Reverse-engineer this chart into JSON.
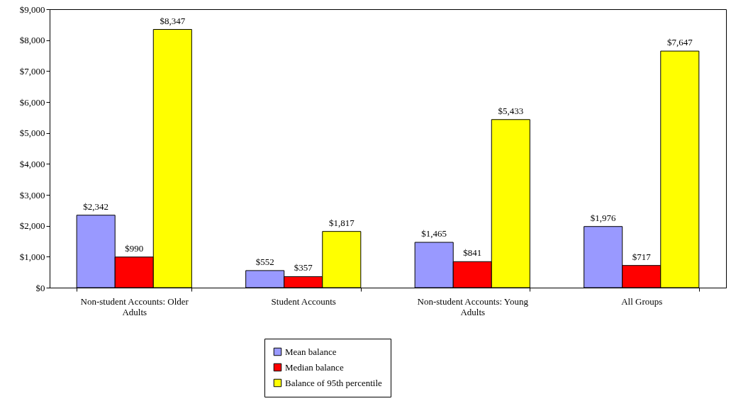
{
  "chart_data": {
    "type": "bar",
    "categories": [
      "Non-student Accounts: Older Adults",
      "Student Accounts",
      "Non-student Accounts: Young Adults",
      "All Groups"
    ],
    "series": [
      {
        "name": "Mean balance",
        "color": "#9999ff",
        "values": [
          2342,
          552,
          1465,
          1976
        ],
        "value_labels": [
          "$2,342",
          "$552",
          "$1,465",
          "$1,976"
        ]
      },
      {
        "name": "Median balance",
        "color": "#ff0000",
        "values": [
          990,
          357,
          841,
          717
        ],
        "value_labels": [
          "$990",
          "$357",
          "$841",
          "$717"
        ]
      },
      {
        "name": "Balance of 95th percentile",
        "color": "#ffff00",
        "values": [
          8347,
          1817,
          5433,
          7647
        ],
        "value_labels": [
          "$8,347",
          "$1,817",
          "$5,433",
          "$7,647"
        ]
      }
    ],
    "ylim": [
      0,
      9000
    ],
    "yticks": [
      {
        "value": 0,
        "label": "$0"
      },
      {
        "value": 1000,
        "label": "$1,000"
      },
      {
        "value": 2000,
        "label": "$2,000"
      },
      {
        "value": 3000,
        "label": "$3,000"
      },
      {
        "value": 4000,
        "label": "$4,000"
      },
      {
        "value": 5000,
        "label": "$5,000"
      },
      {
        "value": 6000,
        "label": "$6,000"
      },
      {
        "value": 7000,
        "label": "$7,000"
      },
      {
        "value": 8000,
        "label": "$8,000"
      },
      {
        "value": 9000,
        "label": "$9,000"
      }
    ],
    "grid": false,
    "legend": "bottom"
  }
}
